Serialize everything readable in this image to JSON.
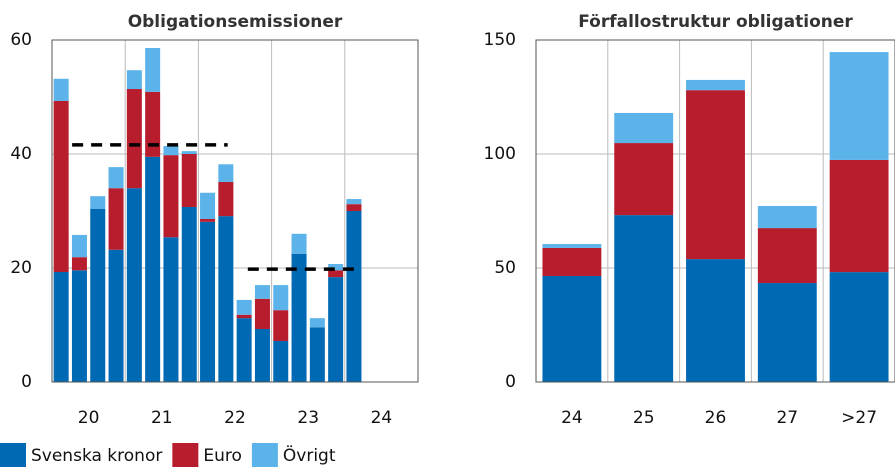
{
  "chart_data": [
    {
      "type": "stacked-bar",
      "title": "Obligationsemissioner",
      "categories": [
        "20",
        null,
        null,
        null,
        "21",
        null,
        null,
        null,
        "22",
        null,
        null,
        null,
        "23",
        null,
        null,
        null,
        "24"
      ],
      "series": [
        {
          "name": "Svenska kronor",
          "color": "#0069b4",
          "values": [
            19.3,
            19.6,
            30.4,
            23.2,
            34.0,
            39.5,
            25.4,
            30.7,
            28.1,
            29.1,
            11.2,
            9.3,
            7.2,
            22.5,
            9.6,
            18.4,
            30.0
          ]
        },
        {
          "name": "Euro",
          "color": "#b81d2e",
          "values": [
            30.0,
            2.3,
            0,
            10.8,
            17.4,
            11.4,
            14.4,
            9.3,
            0.5,
            6.0,
            0.6,
            5.3,
            5.4,
            0,
            0,
            1.2,
            1.2
          ]
        },
        {
          "name": "Övrigt",
          "color": "#5cb3ea",
          "values": [
            3.9,
            3.9,
            2.2,
            3.7,
            3.3,
            7.7,
            1.6,
            0.5,
            4.6,
            3.1,
            2.6,
            2.4,
            4.4,
            3.5,
            1.6,
            1.1,
            0.9
          ]
        }
      ],
      "hlines": [
        {
          "value": 41.6,
          "from": 1.1,
          "to": 9.6
        },
        {
          "value": 19.8,
          "from": 10.7,
          "to": 16.6
        }
      ],
      "ylim": [
        0,
        60
      ],
      "yticks": [
        0,
        20,
        40,
        60
      ],
      "grid": true
    },
    {
      "type": "stacked-bar",
      "title": "Förfallostruktur obligationer",
      "categories": [
        "24",
        "25",
        "26",
        "27",
        ">27"
      ],
      "series": [
        {
          "name": "Svenska kronor",
          "color": "#0069b4",
          "values": [
            46.5,
            73.2,
            53.9,
            43.4,
            48.2
          ]
        },
        {
          "name": "Euro",
          "color": "#b81d2e",
          "values": [
            12.3,
            31.6,
            74.1,
            24.1,
            49.2
          ]
        },
        {
          "name": "Övrigt",
          "color": "#5cb3ea",
          "values": [
            1.7,
            13.2,
            4.5,
            9.7,
            47.3
          ]
        }
      ],
      "ylim": [
        0,
        150
      ],
      "yticks": [
        0,
        50,
        100,
        150
      ],
      "grid": true
    }
  ]
}
